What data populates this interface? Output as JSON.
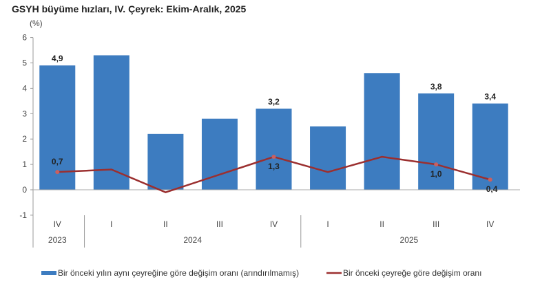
{
  "title": "GSYH büyüme hızları, IV. Çeyrek: Ekim-Aralık, 2025",
  "chart_data": {
    "type": "bar+line",
    "title": "GSYH büyüme hızları, IV. Çeyrek: Ekim-Aralık, 2025",
    "ylabel": "(%)",
    "ylim": [
      -1,
      6
    ],
    "yticks": [
      -1,
      0,
      1,
      2,
      3,
      4,
      5,
      6
    ],
    "categories": [
      "IV",
      "I",
      "II",
      "III",
      "IV",
      "I",
      "II",
      "III",
      "IV"
    ],
    "year_groups": [
      {
        "label": "2023",
        "count": 1
      },
      {
        "label": "2024",
        "count": 4
      },
      {
        "label": "2025",
        "count": 4
      }
    ],
    "series": [
      {
        "name": "Bir önceki yılın aynı çeyreğine göre değişim oranı (arındırılmamış)",
        "type": "bar",
        "color": "#3d7cc0",
        "values": [
          4.9,
          5.3,
          2.2,
          2.8,
          3.2,
          2.5,
          4.6,
          3.8,
          3.4
        ],
        "labels": [
          "4,9",
          "",
          "",
          "",
          "3,2",
          "",
          "",
          "3,8",
          "3,4"
        ]
      },
      {
        "name": "Bir önceki çeyreğe göre değişim oranı",
        "type": "line",
        "color": "#9b2f2f",
        "values": [
          0.7,
          0.8,
          -0.1,
          0.6,
          1.3,
          0.7,
          1.3,
          1.0,
          0.4
        ],
        "labels": [
          "0,7",
          "",
          "",
          "",
          "1,3",
          "",
          "",
          "1,0",
          "0,4"
        ]
      }
    ],
    "grid": false,
    "legend": "bottom"
  }
}
